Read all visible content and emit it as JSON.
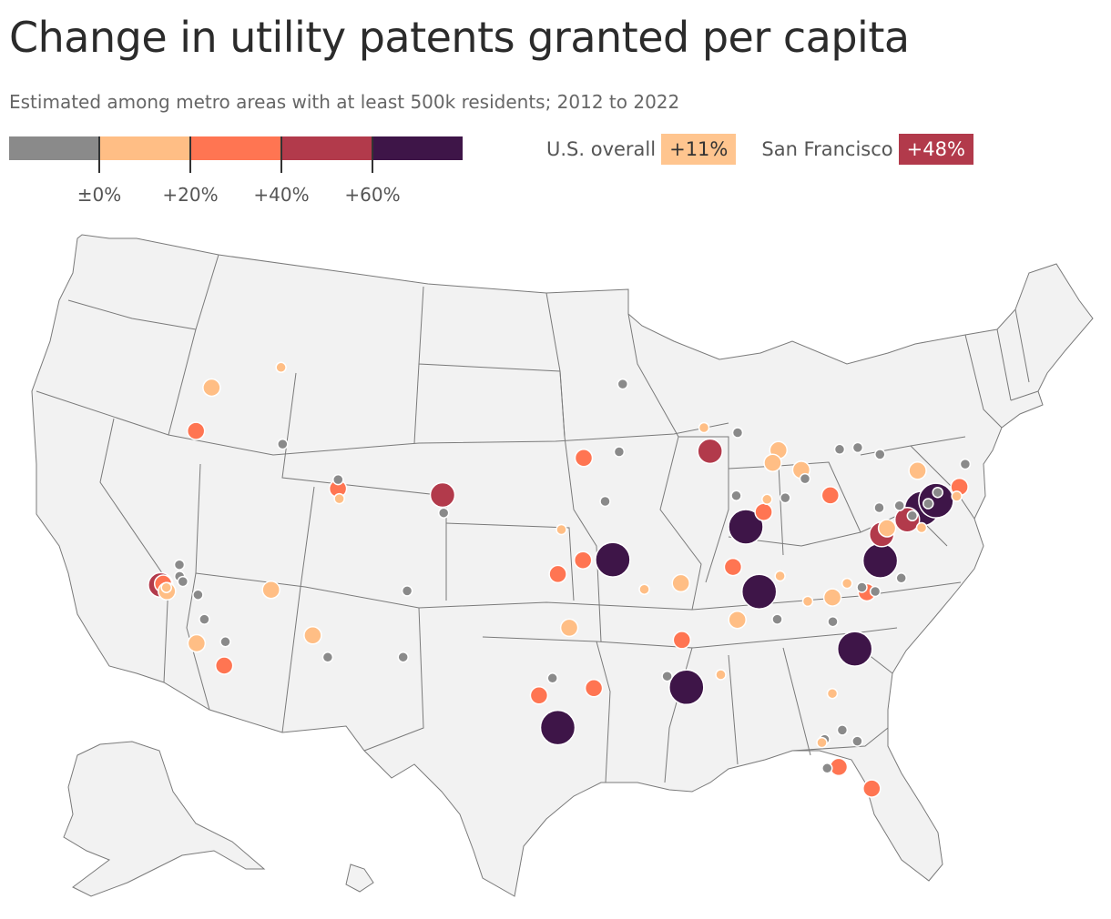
{
  "title": "Change in utility patents granted per capita",
  "subtitle": "Estimated among metro areas with at least 500k residents; 2012 to 2022",
  "legend": {
    "colors": [
      "#8a8a8a",
      "#ffbe85",
      "#ff7552",
      "#b23a4b",
      "#3e1548"
    ],
    "ticks": [
      "±0%",
      "+20%",
      "+40%",
      "+60%"
    ]
  },
  "callouts": {
    "us_label": "U.S. overall",
    "us_value": "+11%",
    "sf_label": "San Francisco",
    "sf_value": "+48%"
  },
  "metros": [
    {
      "lon": -122.33,
      "lat": 47.61,
      "bin": 1,
      "size": "m"
    },
    {
      "lon": -117.42,
      "lat": 47.66,
      "bin": 1,
      "size": "s"
    },
    {
      "lon": -122.68,
      "lat": 45.52,
      "bin": 2,
      "size": "m"
    },
    {
      "lon": -116.2,
      "lat": 43.62,
      "bin": 0,
      "size": "s"
    },
    {
      "lon": -121.49,
      "lat": 38.58,
      "bin": 0,
      "size": "s"
    },
    {
      "lon": -122.27,
      "lat": 37.8,
      "bin": 2,
      "size": "m"
    },
    {
      "lon": -122.42,
      "lat": 37.77,
      "bin": 3,
      "size": "l"
    },
    {
      "lon": -121.99,
      "lat": 37.55,
      "bin": 1,
      "size": "s"
    },
    {
      "lon": -121.89,
      "lat": 37.34,
      "bin": 1,
      "size": "m"
    },
    {
      "lon": -121.29,
      "lat": 37.96,
      "bin": 0,
      "size": "s"
    },
    {
      "lon": -120.99,
      "lat": 37.64,
      "bin": 0,
      "size": "s"
    },
    {
      "lon": -119.79,
      "lat": 36.74,
      "bin": 0,
      "size": "s"
    },
    {
      "lon": -119.02,
      "lat": 35.37,
      "bin": 0,
      "size": "s"
    },
    {
      "lon": -119.18,
      "lat": 34.2,
      "bin": 1,
      "size": "m"
    },
    {
      "lon": -117.39,
      "lat": 33.95,
      "bin": 0,
      "size": "s"
    },
    {
      "lon": -117.16,
      "lat": 32.72,
      "bin": 2,
      "size": "m"
    },
    {
      "lon": -115.14,
      "lat": 36.17,
      "bin": 1,
      "size": "m"
    },
    {
      "lon": -111.89,
      "lat": 40.76,
      "bin": 2,
      "size": "m"
    },
    {
      "lon": -111.7,
      "lat": 40.23,
      "bin": 1,
      "size": "s"
    },
    {
      "lon": -111.97,
      "lat": 41.22,
      "bin": 0,
      "size": "s"
    },
    {
      "lon": -112.07,
      "lat": 33.45,
      "bin": 1,
      "size": "m"
    },
    {
      "lon": -110.97,
      "lat": 32.22,
      "bin": 0,
      "size": "s"
    },
    {
      "lon": -106.65,
      "lat": 35.08,
      "bin": 0,
      "size": "s"
    },
    {
      "lon": -106.49,
      "lat": 31.76,
      "bin": 0,
      "size": "s"
    },
    {
      "lon": -104.99,
      "lat": 39.74,
      "bin": 3,
      "size": "l"
    },
    {
      "lon": -104.82,
      "lat": 38.83,
      "bin": 0,
      "size": "s"
    },
    {
      "lon": -95.94,
      "lat": 41.26,
      "bin": 2,
      "size": "m"
    },
    {
      "lon": -93.27,
      "lat": 44.98,
      "bin": 0,
      "size": "s"
    },
    {
      "lon": -93.62,
      "lat": 41.59,
      "bin": 0,
      "size": "s"
    },
    {
      "lon": -94.58,
      "lat": 39.1,
      "bin": 0,
      "size": "s"
    },
    {
      "lon": -97.34,
      "lat": 37.69,
      "bin": 1,
      "size": "s"
    },
    {
      "lon": -95.99,
      "lat": 36.15,
      "bin": 2,
      "size": "m"
    },
    {
      "lon": -97.52,
      "lat": 35.47,
      "bin": 2,
      "size": "m"
    },
    {
      "lon": -94.16,
      "lat": 36.19,
      "bin": 4,
      "size": "xl"
    },
    {
      "lon": -92.29,
      "lat": 34.75,
      "bin": 1,
      "size": "s"
    },
    {
      "lon": -96.8,
      "lat": 32.78,
      "bin": 1,
      "size": "m"
    },
    {
      "lon": -97.74,
      "lat": 30.27,
      "bin": 0,
      "size": "s"
    },
    {
      "lon": -98.49,
      "lat": 29.42,
      "bin": 2,
      "size": "m"
    },
    {
      "lon": -95.37,
      "lat": 29.76,
      "bin": 2,
      "size": "m"
    },
    {
      "lon": -97.4,
      "lat": 27.8,
      "bin": 4,
      "size": "xl"
    },
    {
      "lon": -91.15,
      "lat": 30.45,
      "bin": 0,
      "size": "s"
    },
    {
      "lon": -90.07,
      "lat": 29.95,
      "bin": 4,
      "size": "xl"
    },
    {
      "lon": -90.18,
      "lat": 32.3,
      "bin": 2,
      "size": "m"
    },
    {
      "lon": -90.05,
      "lat": 35.15,
      "bin": 1,
      "size": "m"
    },
    {
      "lon": -87.91,
      "lat": 43.04,
      "bin": 1,
      "size": "s"
    },
    {
      "lon": -87.63,
      "lat": 41.88,
      "bin": 3,
      "size": "l"
    },
    {
      "lon": -86.16,
      "lat": 39.77,
      "bin": 0,
      "size": "s"
    },
    {
      "lon": -85.67,
      "lat": 42.96,
      "bin": 0,
      "size": "s"
    },
    {
      "lon": -83.05,
      "lat": 42.33,
      "bin": 1,
      "size": "m"
    },
    {
      "lon": -83.54,
      "lat": 41.65,
      "bin": 1,
      "size": "m"
    },
    {
      "lon": -85.74,
      "lat": 38.25,
      "bin": 4,
      "size": "xl"
    },
    {
      "lon": -84.5,
      "lat": 39.1,
      "bin": 2,
      "size": "m"
    },
    {
      "lon": -84.19,
      "lat": 39.76,
      "bin": 1,
      "size": "s"
    },
    {
      "lon": -82.99,
      "lat": 39.96,
      "bin": 0,
      "size": "s"
    },
    {
      "lon": -81.69,
      "lat": 41.5,
      "bin": 1,
      "size": "m"
    },
    {
      "lon": -81.52,
      "lat": 41.08,
      "bin": 0,
      "size": "s"
    },
    {
      "lon": -86.78,
      "lat": 36.16,
      "bin": 2,
      "size": "m"
    },
    {
      "lon": -83.92,
      "lat": 35.96,
      "bin": 1,
      "size": "s"
    },
    {
      "lon": -85.31,
      "lat": 35.05,
      "bin": 4,
      "size": "xl"
    },
    {
      "lon": -86.8,
      "lat": 33.52,
      "bin": 1,
      "size": "m"
    },
    {
      "lon": -88.04,
      "lat": 30.69,
      "bin": 1,
      "size": "s"
    },
    {
      "lon": -84.39,
      "lat": 33.75,
      "bin": 0,
      "size": "s"
    },
    {
      "lon": -82.4,
      "lat": 34.85,
      "bin": 1,
      "size": "s"
    },
    {
      "lon": -81.03,
      "lat": 34.0,
      "bin": 0,
      "size": "s"
    },
    {
      "lon": -80.84,
      "lat": 35.23,
      "bin": 1,
      "size": "m"
    },
    {
      "lon": -79.94,
      "lat": 32.78,
      "bin": 4,
      "size": "xl"
    },
    {
      "lon": -81.66,
      "lat": 30.33,
      "bin": 1,
      "size": "s"
    },
    {
      "lon": -81.38,
      "lat": 28.54,
      "bin": 0,
      "size": "s"
    },
    {
      "lon": -80.61,
      "lat": 28.08,
      "bin": 0,
      "size": "s"
    },
    {
      "lon": -82.46,
      "lat": 27.95,
      "bin": 0,
      "size": "s"
    },
    {
      "lon": -82.64,
      "lat": 27.77,
      "bin": 1,
      "size": "s"
    },
    {
      "lon": -81.87,
      "lat": 26.64,
      "bin": 2,
      "size": "m"
    },
    {
      "lon": -80.19,
      "lat": 25.77,
      "bin": 2,
      "size": "m"
    },
    {
      "lon": -82.53,
      "lat": 26.5,
      "bin": 0,
      "size": "s"
    },
    {
      "lon": -79.79,
      "lat": 36.07,
      "bin": 1,
      "size": "s"
    },
    {
      "lon": -78.64,
      "lat": 35.78,
      "bin": 2,
      "size": "m"
    },
    {
      "lon": -78.9,
      "lat": 35.99,
      "bin": 0,
      "size": "s"
    },
    {
      "lon": -78.1,
      "lat": 35.9,
      "bin": 0,
      "size": "s"
    },
    {
      "lon": -76.29,
      "lat": 36.85,
      "bin": 0,
      "size": "s"
    },
    {
      "lon": -77.44,
      "lat": 37.54,
      "bin": 4,
      "size": "xl"
    },
    {
      "lon": -77.04,
      "lat": 38.91,
      "bin": 3,
      "size": "l"
    },
    {
      "lon": -76.61,
      "lat": 39.29,
      "bin": 1,
      "size": "m"
    },
    {
      "lon": -80.0,
      "lat": 40.44,
      "bin": 2,
      "size": "m"
    },
    {
      "lon": -76.88,
      "lat": 40.27,
      "bin": 0,
      "size": "s"
    },
    {
      "lon": -75.16,
      "lat": 39.95,
      "bin": 3,
      "size": "l"
    },
    {
      "lon": -75.49,
      "lat": 40.6,
      "bin": 0,
      "size": "s"
    },
    {
      "lon": -74.76,
      "lat": 40.22,
      "bin": 0,
      "size": "s"
    },
    {
      "lon": -74.3,
      "lat": 39.7,
      "bin": 1,
      "size": "s"
    },
    {
      "lon": -74.0,
      "lat": 40.71,
      "bin": 4,
      "size": "xl"
    },
    {
      "lon": -72.92,
      "lat": 41.31,
      "bin": 4,
      "size": "xl"
    },
    {
      "lon": -73.5,
      "lat": 41.05,
      "bin": 0,
      "size": "s"
    },
    {
      "lon": -73.75,
      "lat": 42.65,
      "bin": 1,
      "size": "m"
    },
    {
      "lon": -72.68,
      "lat": 41.76,
      "bin": 0,
      "size": "s"
    },
    {
      "lon": -71.06,
      "lat": 42.36,
      "bin": 2,
      "size": "m"
    },
    {
      "lon": -71.41,
      "lat": 41.82,
      "bin": 1,
      "size": "s"
    },
    {
      "lon": -70.26,
      "lat": 43.66,
      "bin": 0,
      "size": "s"
    },
    {
      "lon": -76.15,
      "lat": 43.05,
      "bin": 0,
      "size": "s"
    },
    {
      "lon": -77.61,
      "lat": 43.16,
      "bin": 0,
      "size": "s"
    },
    {
      "lon": -78.88,
      "lat": 42.89,
      "bin": 0,
      "size": "s"
    }
  ]
}
